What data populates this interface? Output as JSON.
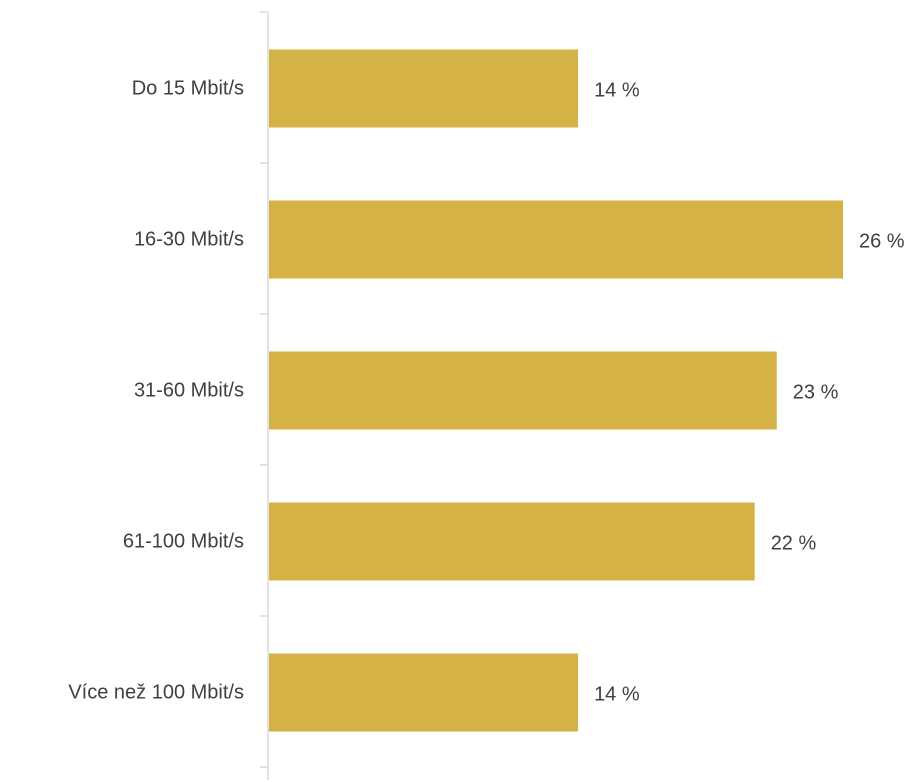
{
  "chart_data": {
    "type": "bar",
    "orientation": "horizontal",
    "title": "",
    "xlabel": "",
    "ylabel": "",
    "categories": [
      "Do 15 Mbit/s",
      "16-30 Mbit/s",
      "31-60 Mbit/s",
      "61-100 Mbit/s",
      "Více než 100 Mbit/s"
    ],
    "values": [
      14,
      26,
      23,
      22,
      14
    ],
    "value_labels": [
      "14 %",
      "26 %",
      "23 %",
      "22 %",
      "14 %"
    ],
    "unit": "%",
    "xlim": [
      0,
      26
    ],
    "grid": false,
    "legend": "none",
    "bar_color": "#D4B245",
    "axis_color": "#D9D9D9",
    "text_color": "#404040"
  }
}
